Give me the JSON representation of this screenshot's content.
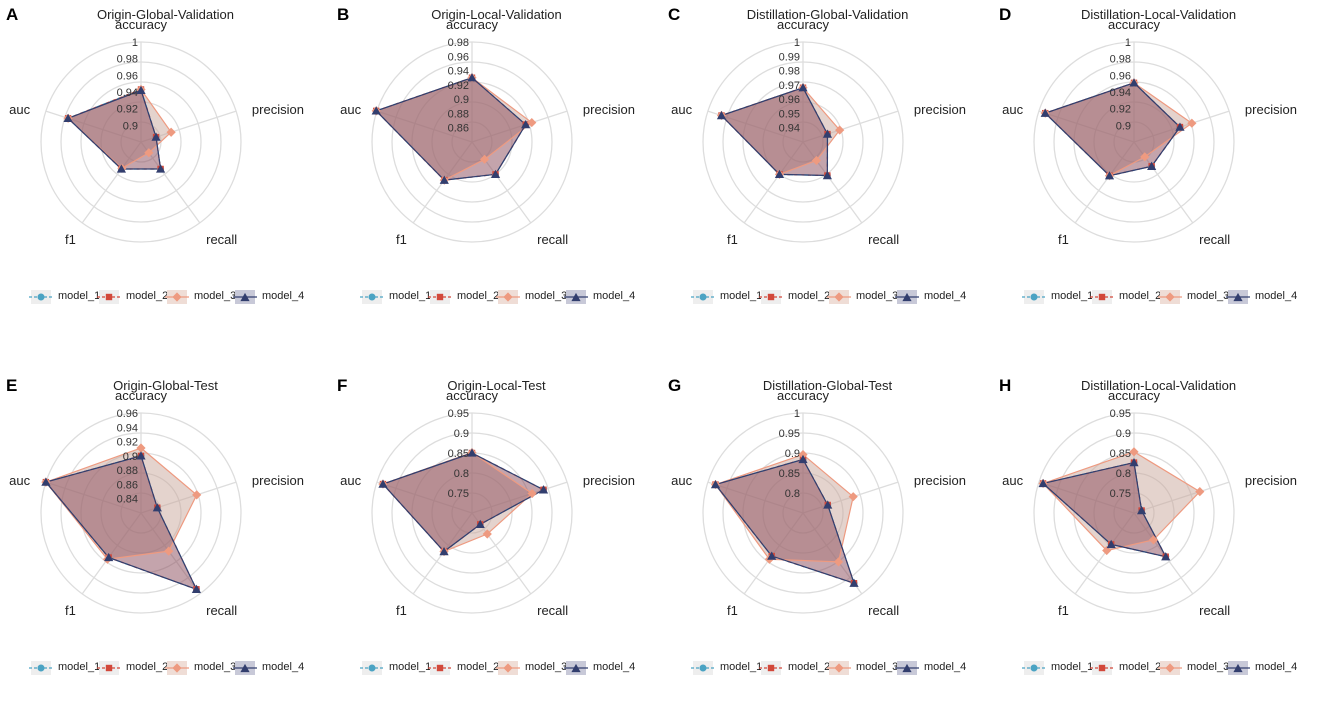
{
  "figure": {
    "legend_names": [
      "model_1",
      "model_2",
      "model_3",
      "model_4"
    ],
    "axes": [
      "accuracy",
      "precision",
      "recall",
      "f1",
      "auc"
    ]
  },
  "colors": {
    "model_1": "#4BA3C3",
    "model_2": "#D2483A",
    "model_3": "#EE9A80",
    "model_4": "#323E6E",
    "grid": "#DDDDDD",
    "fill_dark": "#8A4A5A",
    "fill_light": "#C9A89C"
  },
  "chart_data": [
    {
      "type": "radar",
      "letter": "A",
      "title": "Origin-Global-Validation",
      "axes": [
        "accuracy",
        "precision",
        "recall",
        "f1",
        "auc"
      ],
      "range": [
        0.88,
        1.0
      ],
      "ticks": [
        "0.9",
        "0.92",
        "0.94",
        "0.96",
        "0.98",
        "1"
      ],
      "tick_values": [
        0.9,
        0.92,
        0.94,
        0.96,
        0.98,
        1.0
      ],
      "series": [
        {
          "name": "model_1",
          "values": [
            0.943,
            0.899,
            0.92,
            0.92,
            0.972
          ]
        },
        {
          "name": "model_2",
          "values": [
            0.943,
            0.899,
            0.92,
            0.92,
            0.972
          ]
        },
        {
          "name": "model_3",
          "values": [
            0.943,
            0.918,
            0.896,
            0.919,
            0.972
          ]
        },
        {
          "name": "model_4",
          "values": [
            0.942,
            0.899,
            0.92,
            0.92,
            0.972
          ]
        }
      ]
    },
    {
      "type": "radar",
      "letter": "B",
      "title": "Origin-Local-Validation",
      "axes": [
        "accuracy",
        "precision",
        "recall",
        "f1",
        "auc"
      ],
      "range": [
        0.84,
        0.98
      ],
      "ticks": [
        "0.86",
        "0.88",
        "0.9",
        "0.92",
        "0.94",
        "0.96",
        "0.98"
      ],
      "tick_values": [
        0.86,
        0.88,
        0.9,
        0.92,
        0.94,
        0.96,
        0.98
      ],
      "series": [
        {
          "name": "model_1",
          "values": [
            0.93,
            0.919,
            0.896,
            0.906,
            0.981
          ]
        },
        {
          "name": "model_2",
          "values": [
            0.93,
            0.919,
            0.896,
            0.906,
            0.981
          ]
        },
        {
          "name": "model_3",
          "values": [
            0.93,
            0.928,
            0.87,
            0.906,
            0.981
          ]
        },
        {
          "name": "model_4",
          "values": [
            0.93,
            0.919,
            0.896,
            0.906,
            0.981
          ]
        }
      ]
    },
    {
      "type": "radar",
      "letter": "C",
      "title": "Distillation-Global-Validation",
      "axes": [
        "accuracy",
        "precision",
        "recall",
        "f1",
        "auc"
      ],
      "range": [
        0.93,
        1.0
      ],
      "ticks": [
        "0.94",
        "0.95",
        "0.96",
        "0.97",
        "0.98",
        "0.99",
        "1"
      ],
      "tick_values": [
        0.94,
        0.95,
        0.96,
        0.97,
        0.98,
        0.99,
        1.0
      ],
      "series": [
        {
          "name": "model_1",
          "values": [
            0.968,
            0.948,
            0.959,
            0.958,
            0.99
          ]
        },
        {
          "name": "model_2",
          "values": [
            0.968,
            0.948,
            0.959,
            0.958,
            0.99
          ]
        },
        {
          "name": "model_3",
          "values": [
            0.968,
            0.957,
            0.946,
            0.958,
            0.99
          ]
        },
        {
          "name": "model_4",
          "values": [
            0.968,
            0.948,
            0.959,
            0.958,
            0.99
          ]
        }
      ]
    },
    {
      "type": "radar",
      "letter": "D",
      "title": "Distillation-Local-Validation",
      "axes": [
        "accuracy",
        "precision",
        "recall",
        "f1",
        "auc"
      ],
      "range": [
        0.88,
        1.0
      ],
      "ticks": [
        "0.9",
        "0.92",
        "0.94",
        "0.96",
        "0.98",
        "1"
      ],
      "tick_values": [
        0.9,
        0.92,
        0.94,
        0.96,
        0.98,
        1.0
      ],
      "series": [
        {
          "name": "model_1",
          "values": [
            0.951,
            0.938,
            0.916,
            0.93,
            0.992
          ]
        },
        {
          "name": "model_2",
          "values": [
            0.951,
            0.938,
            0.916,
            0.93,
            0.992
          ]
        },
        {
          "name": "model_3",
          "values": [
            0.951,
            0.953,
            0.902,
            0.93,
            0.992
          ]
        },
        {
          "name": "model_4",
          "values": [
            0.951,
            0.938,
            0.916,
            0.93,
            0.992
          ]
        }
      ]
    },
    {
      "type": "radar",
      "letter": "E",
      "title": "Origin-Global-Test",
      "axes": [
        "accuracy",
        "precision",
        "recall",
        "f1",
        "auc"
      ],
      "range": [
        0.82,
        0.96
      ],
      "ticks": [
        "0.84",
        "0.86",
        "0.88",
        "0.9",
        "0.92",
        "0.94",
        "0.96"
      ],
      "tick_values": [
        0.84,
        0.86,
        0.88,
        0.9,
        0.92,
        0.94,
        0.96
      ],
      "series": [
        {
          "name": "model_1",
          "values": [
            0.9,
            0.844,
            0.952,
            0.897,
            0.96
          ]
        },
        {
          "name": "model_2",
          "values": [
            0.9,
            0.844,
            0.952,
            0.897,
            0.96
          ]
        },
        {
          "name": "model_3",
          "values": [
            0.911,
            0.902,
            0.886,
            0.9,
            0.96
          ]
        },
        {
          "name": "model_4",
          "values": [
            0.9,
            0.844,
            0.952,
            0.897,
            0.96
          ]
        }
      ]
    },
    {
      "type": "radar",
      "letter": "F",
      "title": "Origin-Local-Test",
      "axes": [
        "accuracy",
        "precision",
        "recall",
        "f1",
        "auc"
      ],
      "range": [
        0.7,
        0.95
      ],
      "ticks": [
        "0.75",
        "0.8",
        "0.85",
        "0.9",
        "0.95"
      ],
      "tick_values": [
        0.75,
        0.8,
        0.85,
        0.9,
        0.95
      ],
      "series": [
        {
          "name": "model_1",
          "values": [
            0.85,
            0.888,
            0.735,
            0.819,
            0.934
          ]
        },
        {
          "name": "model_2",
          "values": [
            0.85,
            0.888,
            0.735,
            0.819,
            0.934
          ]
        },
        {
          "name": "model_3",
          "values": [
            0.851,
            0.858,
            0.765,
            0.819,
            0.934
          ]
        },
        {
          "name": "model_4",
          "values": [
            0.85,
            0.888,
            0.735,
            0.819,
            0.934
          ]
        }
      ]
    },
    {
      "type": "radar",
      "letter": "G",
      "title": "Distillation-Global-Test",
      "axes": [
        "accuracy",
        "precision",
        "recall",
        "f1",
        "auc"
      ],
      "range": [
        0.75,
        1.0
      ],
      "ticks": [
        "0.8",
        "0.85",
        "0.9",
        "0.95",
        "1"
      ],
      "tick_values": [
        0.8,
        0.85,
        0.9,
        0.95,
        1.0
      ],
      "series": [
        {
          "name": "model_1",
          "values": [
            0.884,
            0.815,
            0.967,
            0.883,
            0.98
          ]
        },
        {
          "name": "model_2",
          "values": [
            0.884,
            0.815,
            0.967,
            0.883,
            0.98
          ]
        },
        {
          "name": "model_3",
          "values": [
            0.896,
            0.882,
            0.901,
            0.893,
            0.98
          ]
        },
        {
          "name": "model_4",
          "values": [
            0.884,
            0.815,
            0.967,
            0.883,
            0.98
          ]
        }
      ]
    },
    {
      "type": "radar",
      "letter": "H",
      "title": "Distillation-Local-Validation",
      "axes": [
        "accuracy",
        "precision",
        "recall",
        "f1",
        "auc"
      ],
      "range": [
        0.7,
        0.95
      ],
      "ticks": [
        "0.75",
        "0.8",
        "0.85",
        "0.9",
        "0.95"
      ],
      "tick_values": [
        0.75,
        0.8,
        0.85,
        0.9,
        0.95
      ],
      "series": [
        {
          "name": "model_1",
          "values": [
            0.826,
            0.72,
            0.835,
            0.797,
            0.939
          ]
        },
        {
          "name": "model_2",
          "values": [
            0.826,
            0.72,
            0.835,
            0.797,
            0.939
          ]
        },
        {
          "name": "model_3",
          "values": [
            0.853,
            0.873,
            0.783,
            0.816,
            0.939
          ]
        },
        {
          "name": "model_4",
          "values": [
            0.826,
            0.72,
            0.835,
            0.797,
            0.939
          ]
        }
      ]
    }
  ]
}
